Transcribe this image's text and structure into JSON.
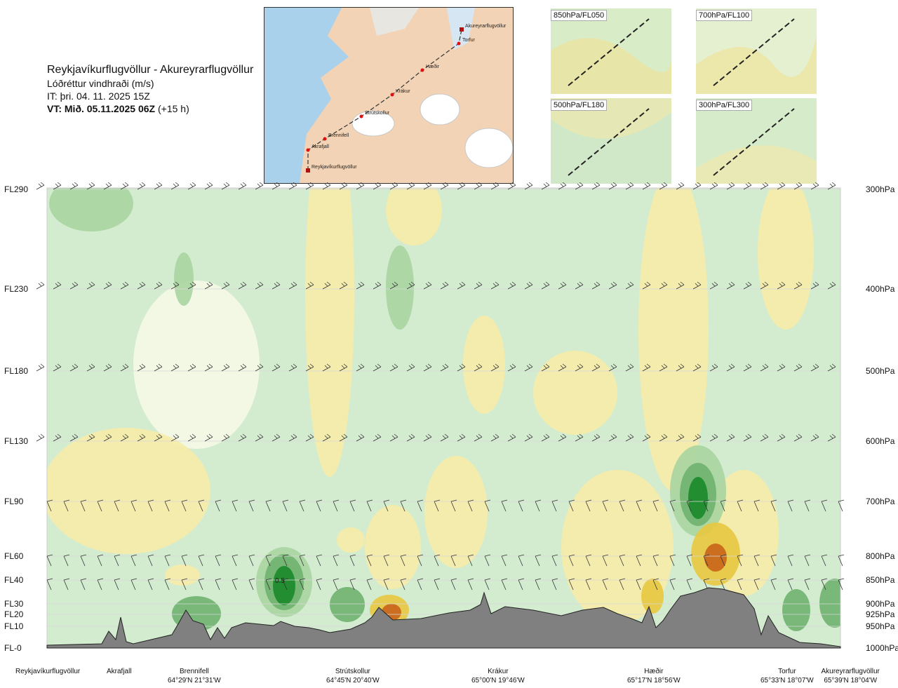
{
  "header": {
    "title": "Reykjavíkurflugvöllur - Akureyrarflugvöllur",
    "subtitle": "Lóðréttur vindhraði (m/s)",
    "it": "IT: þri. 04. 11. 2025 15Z",
    "vt_bold": "VT: Mið. 05.11.2025 06Z",
    "vt_suffix": " (+15 h)"
  },
  "route_map": {
    "points": [
      "Reykjavíkurflugvöllur",
      "Akrafjall",
      "Brennifell",
      "Strútskollur",
      "Krákur",
      "Hæðir",
      "Torfur",
      "Akureyrarflugvöllur"
    ]
  },
  "insets": [
    {
      "label": "850hPa/FL050"
    },
    {
      "label": "700hPa/FL100"
    },
    {
      "label": "500hPa/FL180"
    },
    {
      "label": "300hPa/FL300"
    }
  ],
  "colors": {
    "strong_down": "#1a8a2a",
    "mod_down": "#6fb26f",
    "weak_down": "#a8d5a0",
    "faint_down": "#d3ecd0",
    "neutral": "#f5f9e6",
    "weak_up": "#f6eca8",
    "mod_up": "#e8c840",
    "strong_up": "#c8641a",
    "terrain": "#808080"
  },
  "chart_data": {
    "type": "heatmap",
    "variable": "Lóðréttur vindhraði (m/s)",
    "annotation": "0.5",
    "y_levels": [
      {
        "fl": "FL290",
        "hpa": "300hPa"
      },
      {
        "fl": "FL230",
        "hpa": "400hPa"
      },
      {
        "fl": "FL180",
        "hpa": "500hPa"
      },
      {
        "fl": "FL130",
        "hpa": "600hPa"
      },
      {
        "fl": "FL90",
        "hpa": "700hPa"
      },
      {
        "fl": "FL60",
        "hpa": "800hPa"
      },
      {
        "fl": "FL40",
        "hpa": "850hPa"
      },
      {
        "fl": "FL30",
        "hpa": "900hPa"
      },
      {
        "fl": "FL20",
        "hpa": "925hPa"
      },
      {
        "fl": "FL10",
        "hpa": "950hPa"
      },
      {
        "fl": "FL-0",
        "hpa": "1000hPa"
      }
    ],
    "stations": [
      {
        "name": "Reykjavíkurflugvöllur",
        "coord": ""
      },
      {
        "name": "Akrafjall",
        "coord": ""
      },
      {
        "name": "Brennifell",
        "coord": "64°29'N 21°31'W"
      },
      {
        "name": "Strútskollur",
        "coord": "64°45'N 20°40'W"
      },
      {
        "name": "Krákur",
        "coord": "65°00'N 19°46'W"
      },
      {
        "name": "Hæðir",
        "coord": "65°17'N 18°56'W"
      },
      {
        "name": "Torfur",
        "coord": "65°33'N 18°07'W"
      },
      {
        "name": "Akureyrarflugvöllur",
        "coord": "65°39'N 18°04'W"
      }
    ],
    "legend": "none",
    "grid": true
  }
}
